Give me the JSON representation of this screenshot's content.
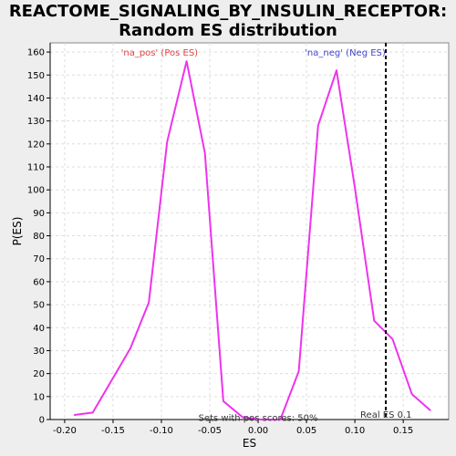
{
  "chart_data": {
    "type": "line",
    "title": "REACTOME_SIGNALING_BY_INSULIN_RECEPTOR:",
    "subtitle": "Random ES distribution",
    "xlabel": "ES",
    "ylabel": "P(ES)",
    "xlim": [
      -0.215,
      0.197
    ],
    "ylim": [
      0,
      164
    ],
    "x_ticks": [
      "-0.20",
      "-0.15",
      "-0.10",
      "-0.05",
      "0.00",
      "0.05",
      "0.10",
      "0.15"
    ],
    "x_tick_values": [
      -0.2,
      -0.15,
      -0.1,
      -0.05,
      0.0,
      0.05,
      0.1,
      0.15
    ],
    "y_ticks": [
      "0",
      "10",
      "20",
      "30",
      "40",
      "50",
      "60",
      "70",
      "80",
      "90",
      "100",
      "110",
      "120",
      "130",
      "140",
      "150",
      "160"
    ],
    "y_tick_values": [
      0,
      10,
      20,
      30,
      40,
      50,
      60,
      70,
      80,
      90,
      100,
      110,
      120,
      130,
      140,
      150,
      160
    ],
    "grid": true,
    "series": [
      {
        "name": "",
        "color": "#ee33ee",
        "x": [
          -0.19,
          -0.171,
          -0.132,
          -0.113,
          -0.094,
          -0.074,
          -0.055,
          -0.036,
          -0.016,
          0.003,
          0.023,
          0.042,
          0.062,
          0.081,
          0.1,
          0.12,
          0.139,
          0.159,
          0.178
        ],
        "y": [
          2,
          3,
          31,
          51,
          121,
          156,
          116,
          8,
          1,
          0,
          0,
          21,
          128,
          152,
          101,
          43,
          35,
          11,
          4
        ]
      }
    ],
    "real_es": {
      "x": 0.132,
      "label": "Real ES 0.1",
      "color": "#000000"
    },
    "annotations": [
      {
        "text": "'na_pos' (Pos ES)",
        "color": "#dd4444",
        "x": -0.102,
        "y": 160
      },
      {
        "text": "'na_neg' (Neg ES)",
        "color": "#4444cc",
        "x": 0.09,
        "y": 160
      },
      {
        "text": "Sets with pos scores: 50%",
        "color": "#333333",
        "x": 0.0,
        "y": 1
      }
    ]
  }
}
